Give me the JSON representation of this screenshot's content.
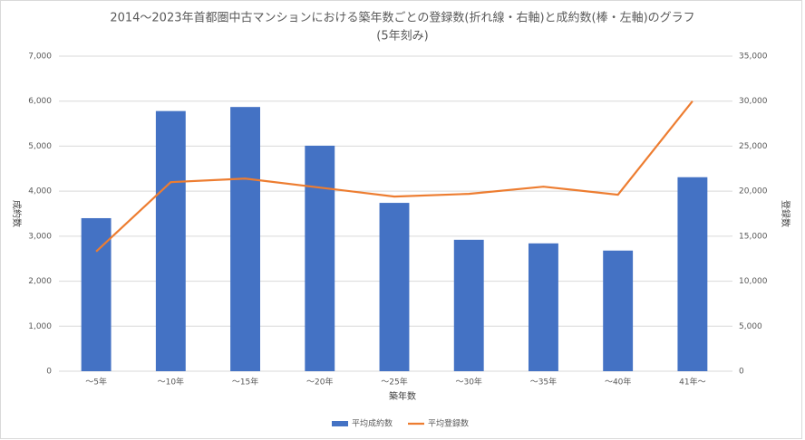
{
  "chart_data": {
    "type": "bar_line",
    "title": "2014～2023年首都圏中古マンションにおける築年数ごとの登録数(折れ線・右軸)と成約数(棒・左軸)のグラフ",
    "subtitle": "(5年刻み)",
    "x_label": "築年数",
    "y_label": "成約数",
    "y2_label": "登録数",
    "categories": [
      "～5年",
      "～10年",
      "～15年",
      "～20年",
      "～25年",
      "～30年",
      "～35年",
      "～40年",
      "41年～"
    ],
    "series": [
      {
        "name": "平均成約数",
        "type": "bar",
        "color": "#4472c4",
        "values": [
          3400,
          5780,
          5870,
          5010,
          3740,
          2920,
          2840,
          2680,
          4310
        ]
      },
      {
        "name": "平均登録数",
        "type": "line",
        "axis": "y2",
        "color": "#ed7d31",
        "values": [
          13300,
          21000,
          21400,
          20400,
          19400,
          19700,
          20500,
          19600,
          30000
        ]
      }
    ],
    "ylim": [
      0,
      7000
    ],
    "yticks": [
      0,
      {
        "value": 1000,
        "label": "1,000"
      },
      {
        "value": 2000,
        "label": "2,000"
      },
      {
        "value": 3000,
        "label": "3,000"
      },
      {
        "value": 4000,
        "label": "4,000"
      },
      {
        "value": 5000,
        "label": "5,000"
      },
      {
        "value": 6000,
        "label": "6,000"
      },
      {
        "value": 7000,
        "label": "7,000"
      }
    ],
    "y2lim": [
      0,
      35000
    ],
    "y2ticks": [
      0,
      {
        "value": 5000,
        "label": "5,000"
      },
      {
        "value": 10000,
        "label": "10,000"
      },
      {
        "value": 15000,
        "label": "15,000"
      },
      {
        "value": 20000,
        "label": "20,000"
      },
      {
        "value": 25000,
        "label": "25,000"
      },
      {
        "value": 30000,
        "label": "30,000"
      },
      {
        "value": 35000,
        "label": "35,000"
      }
    ],
    "grid": true,
    "legend": "bottom"
  }
}
